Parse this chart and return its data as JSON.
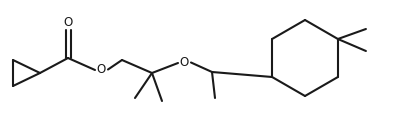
{
  "bg_color": "#ffffff",
  "line_color": "#1a1a1a",
  "line_width": 1.5,
  "figsize": [
    4.0,
    1.28
  ],
  "dpi": 100,
  "xlim": [
    0.0,
    4.0
  ],
  "ylim": [
    0.0,
    1.28
  ]
}
